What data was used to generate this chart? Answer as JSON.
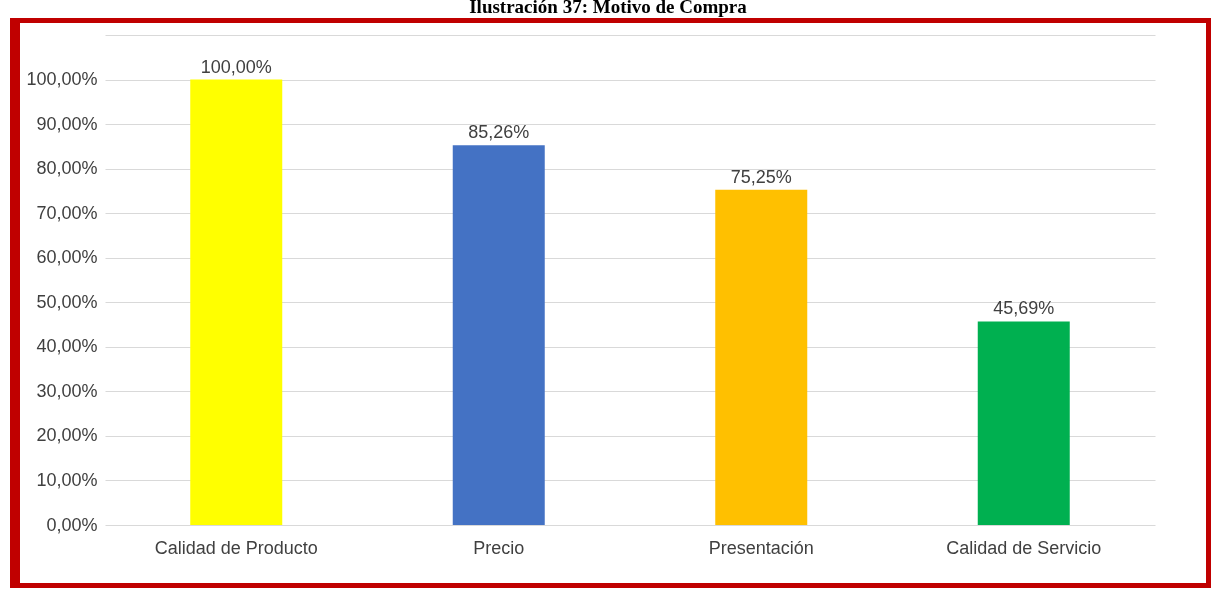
{
  "chart_data": {
    "type": "bar",
    "title": "Ilustración 37: Motivo de Compra",
    "categories": [
      "Calidad de Producto",
      "Precio",
      "Presentación",
      "Calidad de Servicio"
    ],
    "values": [
      100,
      85.26,
      75.25,
      45.69
    ],
    "colors": [
      "#ffff00",
      "#4472c4",
      "#ffc000",
      "#00b050"
    ],
    "value_labels": [
      "100,00%",
      "85,26%",
      "75,25%",
      "45,69%"
    ],
    "ylim": [
      0,
      110
    ],
    "yticks": [
      {
        "value": 0,
        "label": "0,00%"
      },
      {
        "value": 10,
        "label": "10,00%"
      },
      {
        "value": 20,
        "label": "20,00%"
      },
      {
        "value": 30,
        "label": "30,00%"
      },
      {
        "value": 40,
        "label": "40,00%"
      },
      {
        "value": 50,
        "label": "50,00%"
      },
      {
        "value": 60,
        "label": "60,00%"
      },
      {
        "value": 70,
        "label": "70,00%"
      },
      {
        "value": 80,
        "label": "80,00%"
      },
      {
        "value": 90,
        "label": "90,00%"
      },
      {
        "value": 100,
        "label": "100,00%"
      },
      {
        "value": 110,
        "label": null
      }
    ],
    "grid": true
  }
}
